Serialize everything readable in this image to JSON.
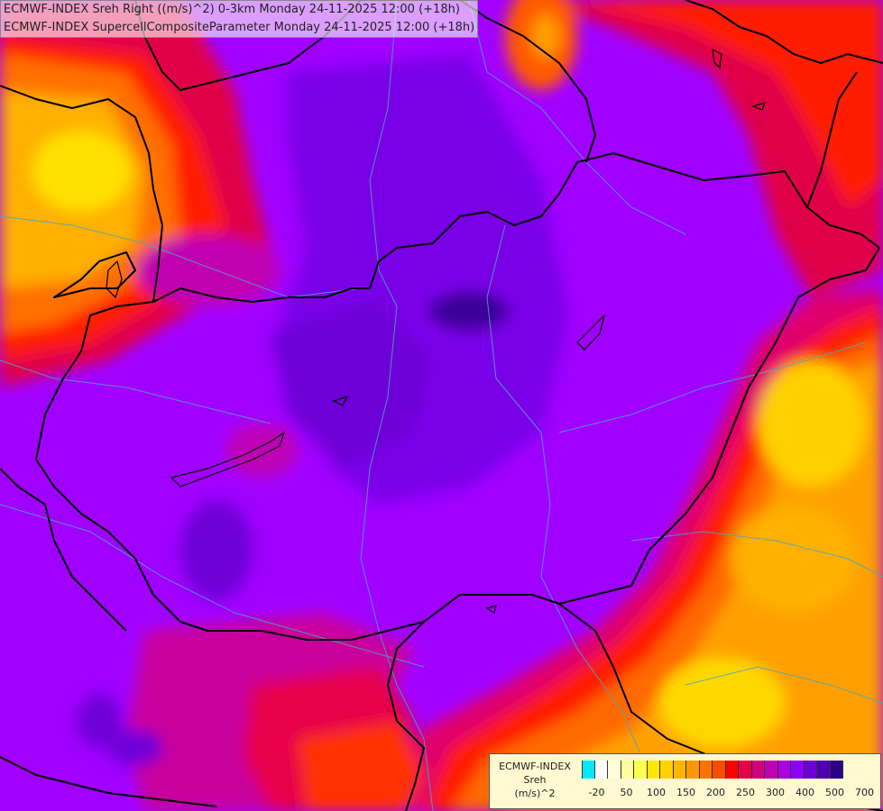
{
  "title": {
    "line1": "ECMWF-INDEX Sreh Right ((m/s)^2) 0-3km Monday 24-11-2025 12:00 (+18h)",
    "line2": "ECMWF-INDEX SupercellCompositeParameter Monday 24-11-2025 12:00 (+18h)"
  },
  "legend": {
    "title_line1": "ECMWF-INDEX",
    "title_line2": "Sreh",
    "title_line3": "(m/s)^2",
    "colors": [
      "#00e8ff",
      "#ffffff",
      "#ffffd8",
      "#ffff9c",
      "#ffff50",
      "#ffe800",
      "#ffd000",
      "#ffb400",
      "#ff9800",
      "#ff7400",
      "#ff4c00",
      "#ff0000",
      "#e6004a",
      "#d0007c",
      "#be00b4",
      "#a800e0",
      "#8c00ff",
      "#6e00d8",
      "#4e00b0",
      "#2c0088"
    ],
    "ticks": [
      {
        "label": "-20",
        "idx": 1
      },
      {
        "label": "50",
        "idx": 3
      },
      {
        "label": "100",
        "idx": 5
      },
      {
        "label": "150",
        "idx": 7
      },
      {
        "label": "200",
        "idx": 9
      },
      {
        "label": "250",
        "idx": 11
      },
      {
        "label": "300",
        "idx": 13
      },
      {
        "label": "400",
        "idx": 15
      },
      {
        "label": "500",
        "idx": 17
      },
      {
        "label": "700",
        "idx": 19
      }
    ]
  }
}
